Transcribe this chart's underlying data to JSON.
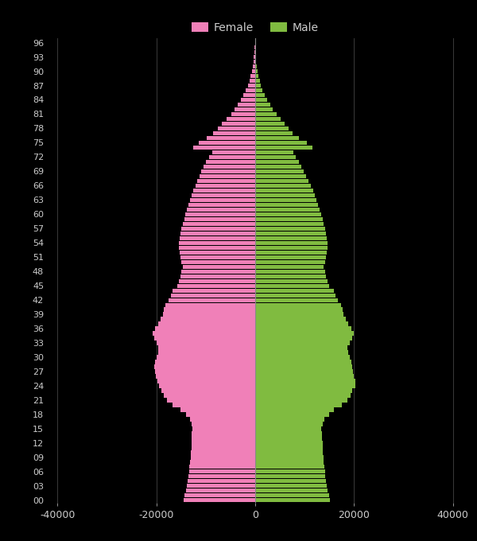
{
  "female_color": "#F080B8",
  "male_color": "#80BB40",
  "background_color": "#000000",
  "text_color": "#CCCCCC",
  "grid_color": "#3a3a3a",
  "xlim": [
    -42000,
    42000
  ],
  "xticks": [
    -40000,
    -20000,
    0,
    20000,
    40000
  ],
  "xtick_labels": [
    "-40000",
    "-20000",
    "0",
    "20000",
    "40000"
  ],
  "ages": [
    0,
    1,
    2,
    3,
    4,
    5,
    6,
    7,
    8,
    9,
    10,
    11,
    12,
    13,
    14,
    15,
    16,
    17,
    18,
    19,
    20,
    21,
    22,
    23,
    24,
    25,
    26,
    27,
    28,
    29,
    30,
    31,
    32,
    33,
    34,
    35,
    36,
    37,
    38,
    39,
    40,
    41,
    42,
    43,
    44,
    45,
    46,
    47,
    48,
    49,
    50,
    51,
    52,
    53,
    54,
    55,
    56,
    57,
    58,
    59,
    60,
    61,
    62,
    63,
    64,
    65,
    66,
    67,
    68,
    69,
    70,
    71,
    72,
    73,
    74,
    75,
    76,
    77,
    78,
    79,
    80,
    81,
    82,
    83,
    84,
    85,
    86,
    87,
    88,
    89,
    90,
    91,
    92,
    93,
    94,
    95,
    96
  ],
  "female": [
    14500,
    14300,
    14000,
    13800,
    13600,
    13500,
    13400,
    13300,
    13200,
    13100,
    13000,
    12900,
    12900,
    12800,
    12800,
    12700,
    12800,
    13200,
    14000,
    15200,
    16800,
    17800,
    18500,
    19000,
    19500,
    19800,
    20100,
    20300,
    20400,
    20200,
    19900,
    19700,
    19600,
    20000,
    20400,
    20700,
    20200,
    19700,
    19200,
    18700,
    18500,
    18200,
    17500,
    17100,
    16700,
    15800,
    15400,
    15100,
    14900,
    14700,
    14900,
    15100,
    15300,
    15400,
    15500,
    15300,
    15100,
    14900,
    14700,
    14400,
    14100,
    13800,
    13500,
    13200,
    12900,
    12500,
    12100,
    11700,
    11300,
    10900,
    10400,
    9900,
    9300,
    8700,
    12500,
    11500,
    9800,
    8500,
    7600,
    6700,
    5800,
    4900,
    4200,
    3500,
    2900,
    2400,
    1900,
    1500,
    1200,
    900,
    650,
    480,
    350,
    260,
    180,
    110,
    60
  ],
  "male": [
    15200,
    15000,
    14700,
    14500,
    14300,
    14200,
    14100,
    14000,
    13900,
    13800,
    13700,
    13600,
    13600,
    13500,
    13500,
    13400,
    13600,
    14000,
    14900,
    16000,
    17600,
    18600,
    19300,
    19700,
    20200,
    20200,
    20000,
    19800,
    19600,
    19400,
    19100,
    18900,
    18700,
    19200,
    19600,
    19900,
    19400,
    18900,
    18400,
    17900,
    17700,
    17400,
    16700,
    16300,
    15900,
    15000,
    14600,
    14300,
    14100,
    13900,
    14100,
    14300,
    14500,
    14600,
    14700,
    14500,
    14300,
    14100,
    13900,
    13600,
    13300,
    13000,
    12700,
    12400,
    12100,
    11700,
    11300,
    10800,
    10300,
    9800,
    9300,
    8800,
    8200,
    7700,
    11600,
    10500,
    8800,
    7600,
    6800,
    5900,
    5100,
    4300,
    3600,
    3000,
    2400,
    1900,
    1500,
    1200,
    900,
    680,
    480,
    340,
    240,
    170,
    110,
    65,
    30
  ],
  "bar_height": 0.88,
  "ytick_step": 3,
  "legend_female": "Female",
  "legend_male": "Male",
  "figsize": [
    6.0,
    6.8
  ],
  "dpi": 100
}
